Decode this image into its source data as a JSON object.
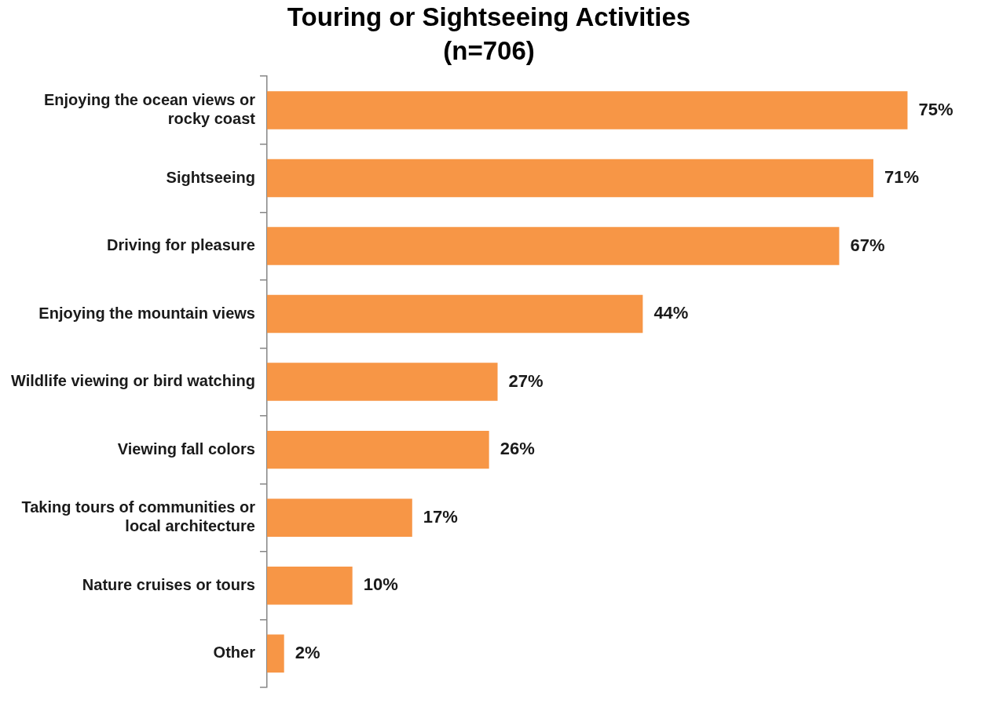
{
  "chart_data": {
    "type": "bar",
    "orientation": "horizontal",
    "title": "Touring or Sightseeing Activities",
    "subtitle": "(n=706)",
    "categories": [
      "Enjoying the ocean views or rocky coast",
      "Sightseeing",
      "Driving for pleasure",
      "Enjoying the mountain views",
      "Wildlife viewing or bird watching",
      "Viewing fall colors",
      "Taking tours of communities or local architecture",
      "Nature cruises or tours",
      "Other"
    ],
    "values": [
      75,
      71,
      67,
      44,
      27,
      26,
      17,
      10,
      2
    ],
    "value_labels": [
      "75%",
      "71%",
      "67%",
      "44%",
      "27%",
      "26%",
      "17%",
      "10%",
      "2%"
    ],
    "color": "#f79646",
    "grid": false,
    "legend": false,
    "tick_labels": "y"
  }
}
